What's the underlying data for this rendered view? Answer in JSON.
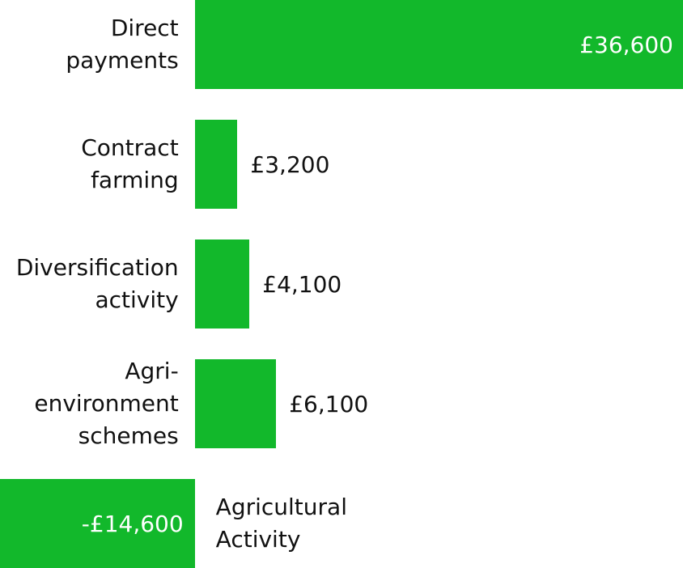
{
  "chart_data": {
    "type": "bar",
    "orientation": "horizontal",
    "categories": [
      "Direct payments",
      "Contract farming",
      "Diversification activity",
      "Agri-environment schemes",
      "Agricultural Activity"
    ],
    "values": [
      36600,
      3200,
      4100,
      6100,
      -14600
    ],
    "value_labels": [
      "£36,600",
      "£3,200",
      "£4,100",
      "£6,100",
      "-£14,600"
    ],
    "color": "#12b82b",
    "xlim": [
      -14600,
      36600
    ]
  }
}
